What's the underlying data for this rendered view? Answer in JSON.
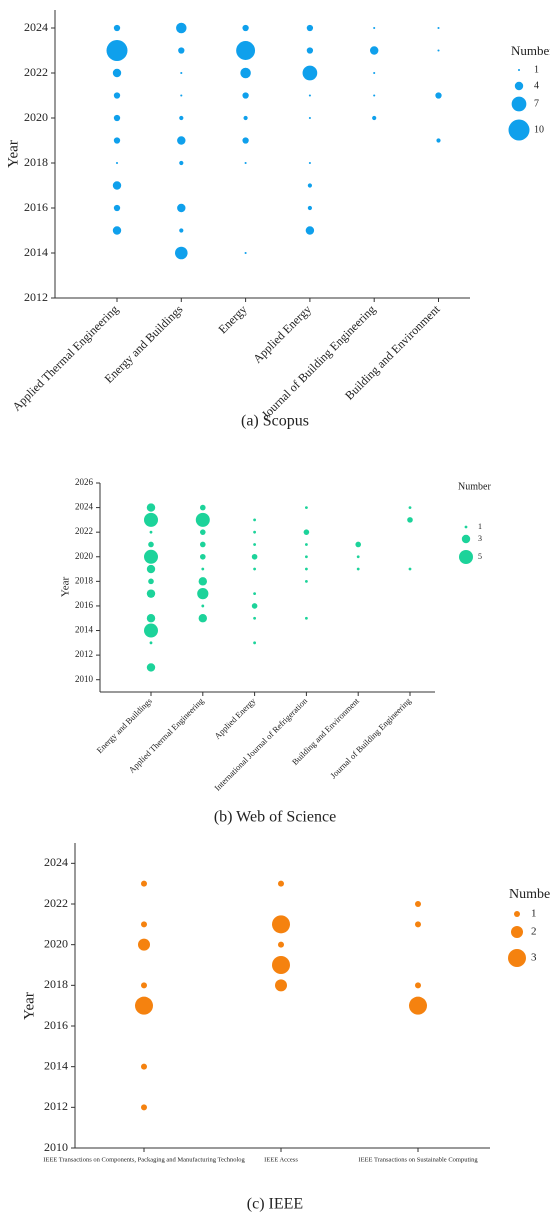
{
  "chart_data": [
    {
      "type": "bubble",
      "caption": "(a) Scopus",
      "y_label": "Year",
      "legend_title": "Number",
      "color": "#0fa0ec",
      "ylim": [
        2012,
        2024.8
      ],
      "yticks": [
        2012,
        2014,
        2016,
        2018,
        2020,
        2022,
        2024
      ],
      "legend_sizes": [
        1,
        4,
        7,
        10
      ],
      "categories": [
        "Applied Thermal Engineering",
        "Energy and Buildings",
        "Energy",
        "Applied Energy",
        "Journal of Building Engineering",
        "Building and Environment"
      ],
      "data": [
        {
          "years": [
            2024,
            2023,
            2022,
            2021,
            2020,
            2019,
            2018,
            2017,
            2016,
            2015
          ],
          "sizes": [
            3,
            10,
            4,
            3,
            3,
            3,
            1,
            4,
            3,
            4
          ]
        },
        {
          "years": [
            2024,
            2023,
            2022,
            2021,
            2020,
            2019,
            2018,
            2016,
            2015,
            2014
          ],
          "sizes": [
            5,
            3,
            1,
            1,
            2,
            4,
            2,
            4,
            2,
            6
          ]
        },
        {
          "years": [
            2024,
            2023,
            2022,
            2021,
            2020,
            2019,
            2018,
            2014
          ],
          "sizes": [
            3,
            9,
            5,
            3,
            2,
            3,
            1,
            1
          ]
        },
        {
          "years": [
            2024,
            2023,
            2022,
            2021,
            2020,
            2018,
            2017,
            2016,
            2015
          ],
          "sizes": [
            3,
            3,
            7,
            1,
            1,
            1,
            2,
            2,
            4
          ]
        },
        {
          "years": [
            2024,
            2023,
            2022,
            2021,
            2020
          ],
          "sizes": [
            1,
            4,
            1,
            1,
            2
          ]
        },
        {
          "years": [
            2024,
            2023,
            2021,
            2019
          ],
          "sizes": [
            1,
            1,
            3,
            2
          ]
        }
      ]
    },
    {
      "type": "bubble",
      "caption": "(b) Web of Science",
      "y_label": "Year",
      "legend_title": "Number",
      "color": "#1cd39a",
      "ylim": [
        2009,
        2026
      ],
      "yticks": [
        2010,
        2012,
        2014,
        2016,
        2018,
        2020,
        2022,
        2024,
        2026
      ],
      "legend_sizes": [
        1,
        3,
        5
      ],
      "categories": [
        "Energy and Buildings",
        "Applied Thermal Engineering",
        "Applied Energy",
        "International Journal of Refrigeration",
        "Building and Environment",
        "Journal of Building Engineering"
      ],
      "data": [
        {
          "years": [
            2024,
            2023,
            2022,
            2021,
            2020,
            2019,
            2018,
            2017,
            2015,
            2014,
            2013,
            2011
          ],
          "sizes": [
            3,
            5,
            1,
            2,
            5,
            3,
            2,
            3,
            3,
            5,
            1,
            3
          ]
        },
        {
          "years": [
            2024,
            2023,
            2022,
            2021,
            2020,
            2019,
            2018,
            2017,
            2016,
            2015
          ],
          "sizes": [
            2,
            5,
            2,
            2,
            2,
            1,
            3,
            4,
            1,
            3
          ]
        },
        {
          "years": [
            2023,
            2022,
            2021,
            2020,
            2019,
            2017,
            2016,
            2015,
            2013
          ],
          "sizes": [
            1,
            1,
            1,
            2,
            1,
            1,
            2,
            1,
            1
          ]
        },
        {
          "years": [
            2024,
            2022,
            2021,
            2020,
            2019,
            2018,
            2015
          ],
          "sizes": [
            1,
            2,
            1,
            1,
            1,
            1,
            1
          ]
        },
        {
          "years": [
            2021,
            2020,
            2019
          ],
          "sizes": [
            2,
            1,
            1
          ]
        },
        {
          "years": [
            2024,
            2023,
            2019
          ],
          "sizes": [
            1,
            2,
            1
          ]
        }
      ]
    },
    {
      "type": "bubble",
      "caption": "(c) IEEE",
      "y_label": "Year",
      "legend_title": "Number",
      "color": "#f5820f",
      "ylim": [
        2010,
        2025
      ],
      "yticks": [
        2010,
        2012,
        2014,
        2016,
        2018,
        2020,
        2022,
        2024
      ],
      "legend_sizes": [
        1,
        2,
        3
      ],
      "categories": [
        "IEEE Transactions on Components, Packaging and Manufacturing Technolog",
        "IEEE Access",
        "IEEE Transactions on Sustainable Computing"
      ],
      "data": [
        {
          "years": [
            2023,
            2021,
            2020,
            2018,
            2017,
            2014,
            2012
          ],
          "sizes": [
            1,
            1,
            2,
            1,
            3,
            1,
            1
          ]
        },
        {
          "years": [
            2023,
            2021,
            2020,
            2019,
            2018
          ],
          "sizes": [
            1,
            3,
            1,
            3,
            2
          ]
        },
        {
          "years": [
            2022,
            2021,
            2018,
            2017
          ],
          "sizes": [
            1,
            1,
            1,
            3
          ]
        }
      ]
    }
  ]
}
